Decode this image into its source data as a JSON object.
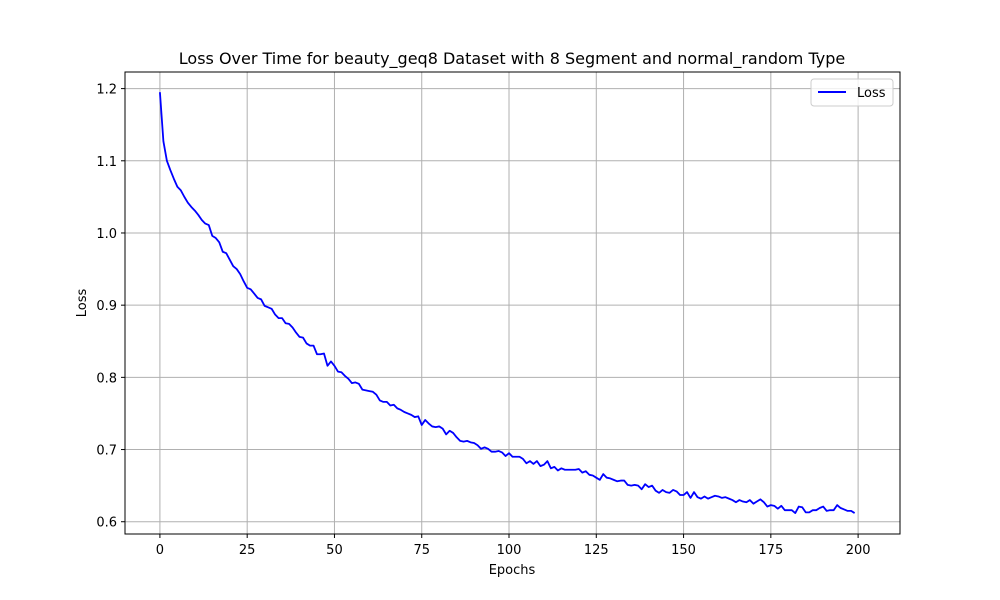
{
  "chart_data": {
    "type": "line",
    "title": "Loss Over Time for beauty_geq8 Dataset with 8 Segment and normal_random Type",
    "xlabel": "Epochs",
    "ylabel": "Loss",
    "xlim": [
      -10,
      212
    ],
    "ylim": [
      0.583,
      1.223
    ],
    "xticks": [
      0,
      25,
      50,
      75,
      100,
      125,
      150,
      175,
      200
    ],
    "yticks": [
      0.6,
      0.7,
      0.8,
      0.9,
      1.0,
      1.1,
      1.2
    ],
    "ytick_labels": [
      "0.6",
      "0.7",
      "0.8",
      "0.9",
      "1.0",
      "1.1",
      "1.2"
    ],
    "grid": true,
    "legend_position": "top-right",
    "series": [
      {
        "name": "Loss",
        "color": "#0000ff",
        "x_start": 0,
        "x_step": 1,
        "values": [
          1.195,
          1.127,
          1.1,
          1.087,
          1.075,
          1.064,
          1.059,
          1.05,
          1.042,
          1.036,
          1.031,
          1.025,
          1.018,
          1.013,
          1.011,
          0.996,
          0.993,
          0.987,
          0.974,
          0.972,
          0.963,
          0.954,
          0.95,
          0.943,
          0.933,
          0.924,
          0.922,
          0.916,
          0.91,
          0.908,
          0.899,
          0.897,
          0.895,
          0.887,
          0.882,
          0.882,
          0.875,
          0.874,
          0.869,
          0.862,
          0.856,
          0.855,
          0.847,
          0.844,
          0.844,
          0.832,
          0.832,
          0.833,
          0.816,
          0.822,
          0.816,
          0.808,
          0.807,
          0.802,
          0.798,
          0.792,
          0.793,
          0.791,
          0.783,
          0.782,
          0.781,
          0.78,
          0.776,
          0.768,
          0.766,
          0.766,
          0.761,
          0.762,
          0.757,
          0.755,
          0.752,
          0.75,
          0.748,
          0.745,
          0.746,
          0.734,
          0.741,
          0.736,
          0.732,
          0.731,
          0.732,
          0.729,
          0.721,
          0.726,
          0.723,
          0.717,
          0.712,
          0.711,
          0.712,
          0.71,
          0.709,
          0.706,
          0.701,
          0.703,
          0.701,
          0.697,
          0.697,
          0.698,
          0.696,
          0.691,
          0.695,
          0.69,
          0.69,
          0.69,
          0.687,
          0.681,
          0.684,
          0.68,
          0.684,
          0.677,
          0.679,
          0.684,
          0.674,
          0.676,
          0.671,
          0.674,
          0.672,
          0.672,
          0.672,
          0.672,
          0.673,
          0.668,
          0.67,
          0.665,
          0.664,
          0.661,
          0.658,
          0.666,
          0.661,
          0.66,
          0.658,
          0.656,
          0.657,
          0.657,
          0.651,
          0.65,
          0.651,
          0.65,
          0.645,
          0.652,
          0.648,
          0.65,
          0.643,
          0.64,
          0.644,
          0.641,
          0.64,
          0.644,
          0.642,
          0.637,
          0.637,
          0.641,
          0.633,
          0.641,
          0.634,
          0.632,
          0.635,
          0.632,
          0.634,
          0.636,
          0.635,
          0.633,
          0.634,
          0.632,
          0.63,
          0.627,
          0.63,
          0.628,
          0.627,
          0.63,
          0.625,
          0.628,
          0.631,
          0.627,
          0.621,
          0.623,
          0.622,
          0.618,
          0.622,
          0.616,
          0.616,
          0.616,
          0.612,
          0.621,
          0.62,
          0.613,
          0.613,
          0.616,
          0.616,
          0.619,
          0.621,
          0.615,
          0.616,
          0.616,
          0.623,
          0.619,
          0.617,
          0.615,
          0.615,
          0.612
        ]
      }
    ]
  }
}
